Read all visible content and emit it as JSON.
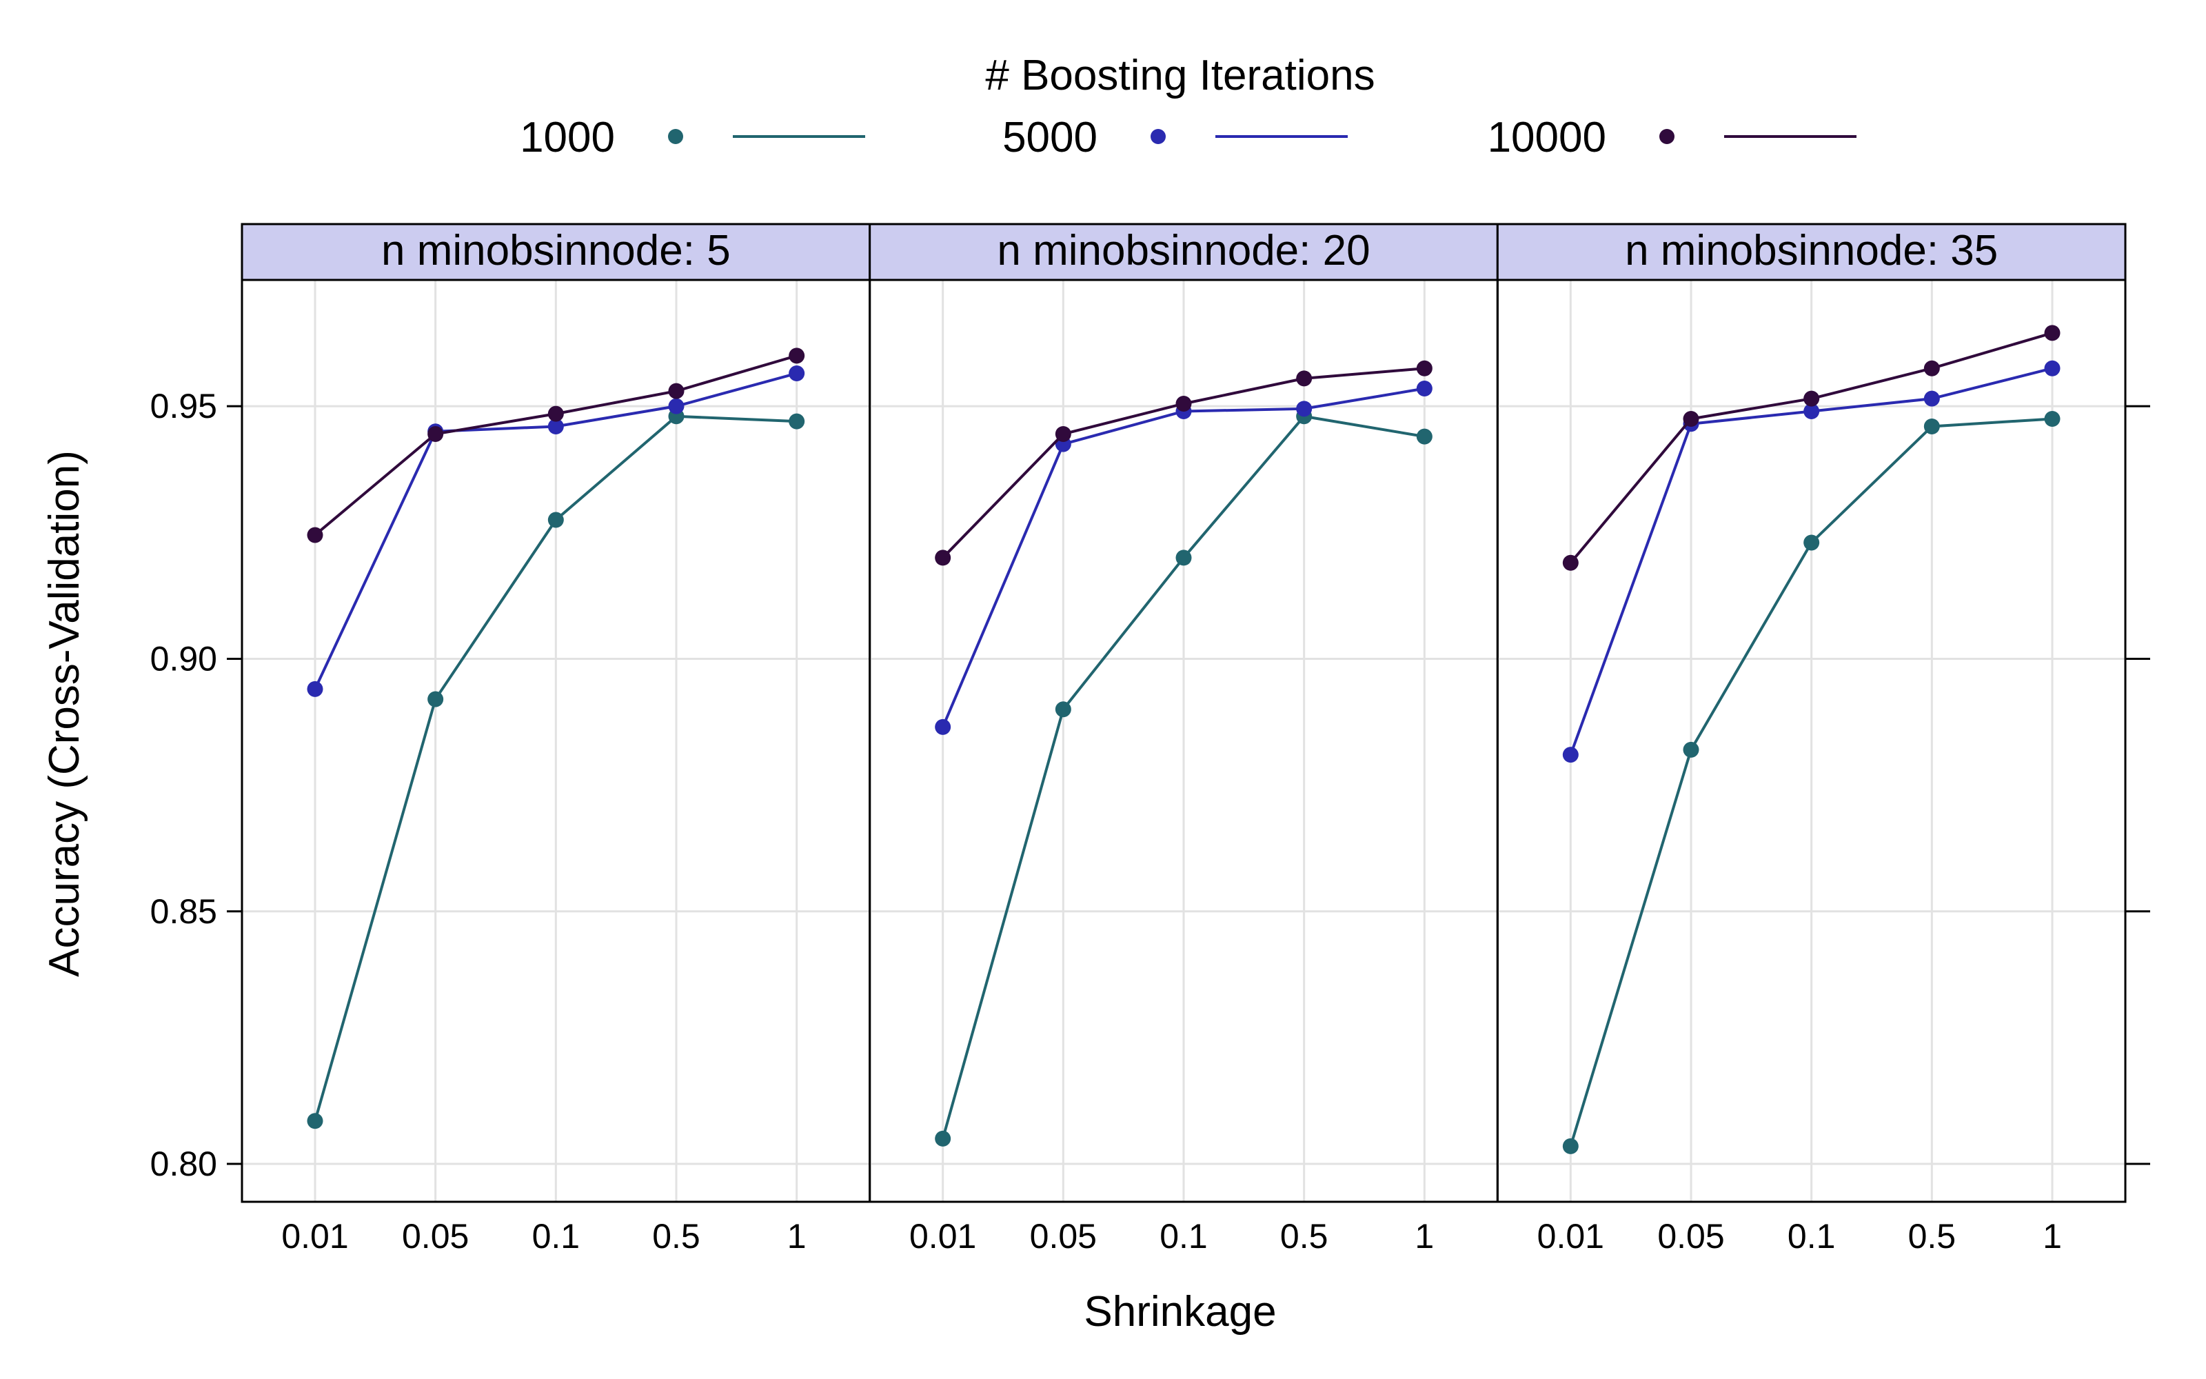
{
  "chart_data": {
    "type": "line",
    "xlabel": "Shrinkage",
    "ylabel": "Accuracy (Cross-Validation)",
    "legend": {
      "title": "# Boosting Iterations",
      "placement": "top-center"
    },
    "x": [
      "0.01",
      "0.05",
      "0.1",
      "0.5",
      "1"
    ],
    "y_ticks": [
      "0.80",
      "0.85",
      "0.90",
      "0.95"
    ],
    "y_tick_values": [
      0.8,
      0.85,
      0.9,
      0.95
    ],
    "ylim": [
      0.7925,
      0.975
    ],
    "grid": true,
    "series_styles": [
      {
        "name": "1000",
        "color": "#21656f"
      },
      {
        "name": "5000",
        "color": "#2a2ab0"
      },
      {
        "name": "10000",
        "color": "#300a3c"
      }
    ],
    "panels": [
      {
        "title": "n minobsinnode:  5",
        "series": [
          {
            "name": "1000",
            "values": [
              0.8085,
              0.892,
              0.9275,
              0.948,
              0.947
            ]
          },
          {
            "name": "5000",
            "values": [
              0.894,
              0.945,
              0.946,
              0.95,
              0.9565
            ]
          },
          {
            "name": "10000",
            "values": [
              0.9245,
              0.9445,
              0.9485,
              0.953,
              0.96
            ]
          }
        ]
      },
      {
        "title": "n minobsinnode: 20",
        "series": [
          {
            "name": "1000",
            "values": [
              0.805,
              0.89,
              0.92,
              0.948,
              0.944
            ]
          },
          {
            "name": "5000",
            "values": [
              0.8865,
              0.9425,
              0.949,
              0.9495,
              0.9535
            ]
          },
          {
            "name": "10000",
            "values": [
              0.92,
              0.9445,
              0.9505,
              0.9555,
              0.9575
            ]
          }
        ]
      },
      {
        "title": "n minobsinnode: 35",
        "series": [
          {
            "name": "1000",
            "values": [
              0.8035,
              0.882,
              0.923,
              0.946,
              0.9475
            ]
          },
          {
            "name": "5000",
            "values": [
              0.881,
              0.9465,
              0.949,
              0.9515,
              0.9575
            ]
          },
          {
            "name": "10000",
            "values": [
              0.919,
              0.9475,
              0.9515,
              0.9575,
              0.9645
            ]
          }
        ]
      }
    ]
  }
}
